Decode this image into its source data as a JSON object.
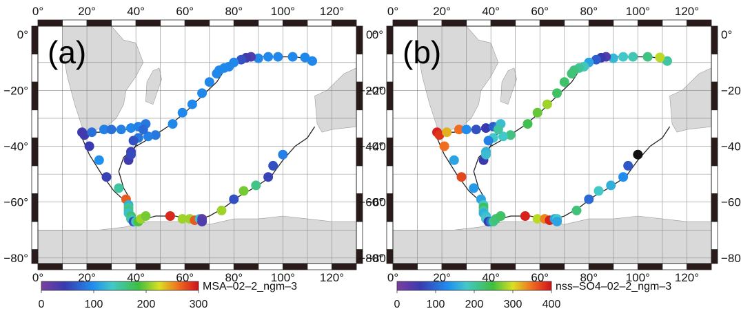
{
  "panels": [
    {
      "label": "(a)",
      "colorbar": {
        "title": "MSA–02–2_ngm–3",
        "min": 0,
        "max": 300,
        "ticks": [
          0,
          100,
          200,
          300
        ]
      }
    },
    {
      "label": "(b)",
      "colorbar": {
        "title": "nss–SO4–02–2_ngm–3",
        "min": 0,
        "max": 400,
        "ticks": [
          0,
          100,
          200,
          300,
          400
        ]
      }
    }
  ],
  "map": {
    "lon_range": [
      0,
      130
    ],
    "lat_range": [
      -82,
      3
    ],
    "lon_ticks": [
      "0°",
      "20°",
      "40°",
      "60°",
      "80°",
      "100°",
      "120°"
    ],
    "lat_ticks": [
      "0°",
      "−20°",
      "−40°",
      "−60°",
      "−80°"
    ],
    "land_color": "#d9d9d9",
    "track": [
      [
        113,
        -9
      ],
      [
        105,
        -8
      ],
      [
        95,
        -8
      ],
      [
        88,
        -8
      ],
      [
        82,
        -10
      ],
      [
        76,
        -13
      ],
      [
        73,
        -17
      ],
      [
        67,
        -22
      ],
      [
        60,
        -28
      ],
      [
        53,
        -33
      ],
      [
        46,
        -37
      ],
      [
        40,
        -40
      ],
      [
        35,
        -44
      ],
      [
        33,
        -49
      ],
      [
        35,
        -55
      ],
      [
        37,
        -58
      ],
      [
        38,
        -63
      ],
      [
        39,
        -66
      ],
      [
        40,
        -67
      ],
      [
        48,
        -65
      ],
      [
        56,
        -65
      ],
      [
        62,
        -66
      ],
      [
        66,
        -66
      ],
      [
        70,
        -65
      ],
      [
        76,
        -62
      ],
      [
        82,
        -58
      ],
      [
        88,
        -55
      ],
      [
        95,
        -51
      ],
      [
        100,
        -45
      ],
      [
        105,
        -40
      ],
      [
        110,
        -37
      ],
      [
        113,
        -33
      ]
    ],
    "track2": [
      [
        18,
        -35
      ],
      [
        25,
        -35
      ],
      [
        31,
        -34
      ],
      [
        38,
        -34
      ],
      [
        42,
        -33
      ],
      [
        45,
        -32
      ],
      [
        41,
        -38
      ],
      [
        38,
        -43
      ]
    ],
    "track3": [
      [
        18,
        -37
      ],
      [
        21,
        -43
      ],
      [
        26,
        -50
      ],
      [
        31,
        -56
      ],
      [
        36,
        -60
      ],
      [
        37,
        -65
      ],
      [
        38,
        -67
      ]
    ]
  },
  "stations": [
    [
      112,
      -9.5,
      95,
      200
    ],
    [
      109,
      -8.2,
      95,
      290
    ],
    [
      104,
      -8,
      95,
      215
    ],
    [
      98,
      -8,
      95,
      190
    ],
    [
      94,
      -8,
      95,
      180
    ],
    [
      90,
      -8.5,
      95,
      165
    ],
    [
      87,
      -8,
      30,
      40
    ],
    [
      85,
      -8.3,
      40,
      60
    ],
    [
      83,
      -9,
      60,
      90
    ],
    [
      80,
      -10,
      95,
      150
    ],
    [
      78,
      -11.5,
      95,
      185
    ],
    [
      76,
      -12,
      95,
      205
    ],
    [
      74,
      -12.8,
      95,
      215
    ],
    [
      73,
      -14,
      95,
      220
    ],
    [
      70,
      -17,
      95,
      225
    ],
    [
      67,
      -21,
      95,
      230
    ],
    [
      63,
      -25,
      95,
      280
    ],
    [
      59,
      -28,
      95,
      260
    ],
    [
      55,
      -32,
      95,
      240
    ],
    [
      48,
      -36,
      85,
      215
    ],
    [
      45,
      -36.5,
      90,
      180
    ],
    [
      18,
      -35,
      40,
      390
    ],
    [
      19,
      -36,
      40,
      380
    ],
    [
      22,
      -35,
      80,
      320
    ],
    [
      27,
      -34,
      90,
      350
    ],
    [
      30,
      -34,
      80,
      130
    ],
    [
      34,
      -34,
      90,
      80
    ],
    [
      38,
      -33.5,
      95,
      60
    ],
    [
      41,
      -33,
      90,
      90
    ],
    [
      43,
      -33,
      100,
      110
    ],
    [
      44,
      -32,
      85,
      170
    ],
    [
      43,
      -34,
      75,
      200
    ],
    [
      41,
      -37,
      85,
      180
    ],
    [
      39,
      -38,
      60,
      120
    ],
    [
      38,
      -42,
      50,
      160
    ],
    [
      37,
      -45,
      40,
      60
    ],
    [
      38,
      -43,
      55,
      170
    ],
    [
      21,
      -40,
      45,
      350
    ],
    [
      25,
      -45,
      100,
      150
    ],
    [
      28,
      -51,
      50,
      370
    ],
    [
      33,
      -55,
      150,
      140
    ],
    [
      36,
      -59,
      270,
      150
    ],
    [
      37,
      -61,
      120,
      180
    ],
    [
      37,
      -62,
      150,
      240
    ],
    [
      37,
      -63,
      160,
      200
    ],
    [
      37,
      -64,
      130,
      160
    ],
    [
      38,
      -65,
      170,
      170
    ],
    [
      38,
      -66,
      150,
      180
    ],
    [
      39,
      -67,
      60,
      60
    ],
    [
      40,
      -67,
      140,
      110
    ],
    [
      41,
      -67,
      190,
      210
    ],
    [
      42,
      -66,
      210,
      220
    ],
    [
      44,
      -65,
      200,
      230
    ],
    [
      54,
      -65,
      290,
      390
    ],
    [
      59,
      -66,
      210,
      290
    ],
    [
      62,
      -66,
      210,
      340
    ],
    [
      64,
      -66.5,
      270,
      390
    ],
    [
      66,
      -66,
      130,
      150
    ],
    [
      67,
      -66,
      20,
      180
    ],
    [
      67,
      -67,
      30,
      150
    ],
    [
      75,
      -63,
      210,
      220
    ],
    [
      80,
      -59,
      60,
      100
    ],
    [
      84,
      -56,
      200,
      180
    ],
    [
      89,
      -54,
      160,
      160
    ],
    [
      94,
      -51,
      50,
      130
    ],
    [
      96,
      -47,
      60,
      85
    ],
    [
      100,
      -43,
      90,
      0
    ]
  ]
}
